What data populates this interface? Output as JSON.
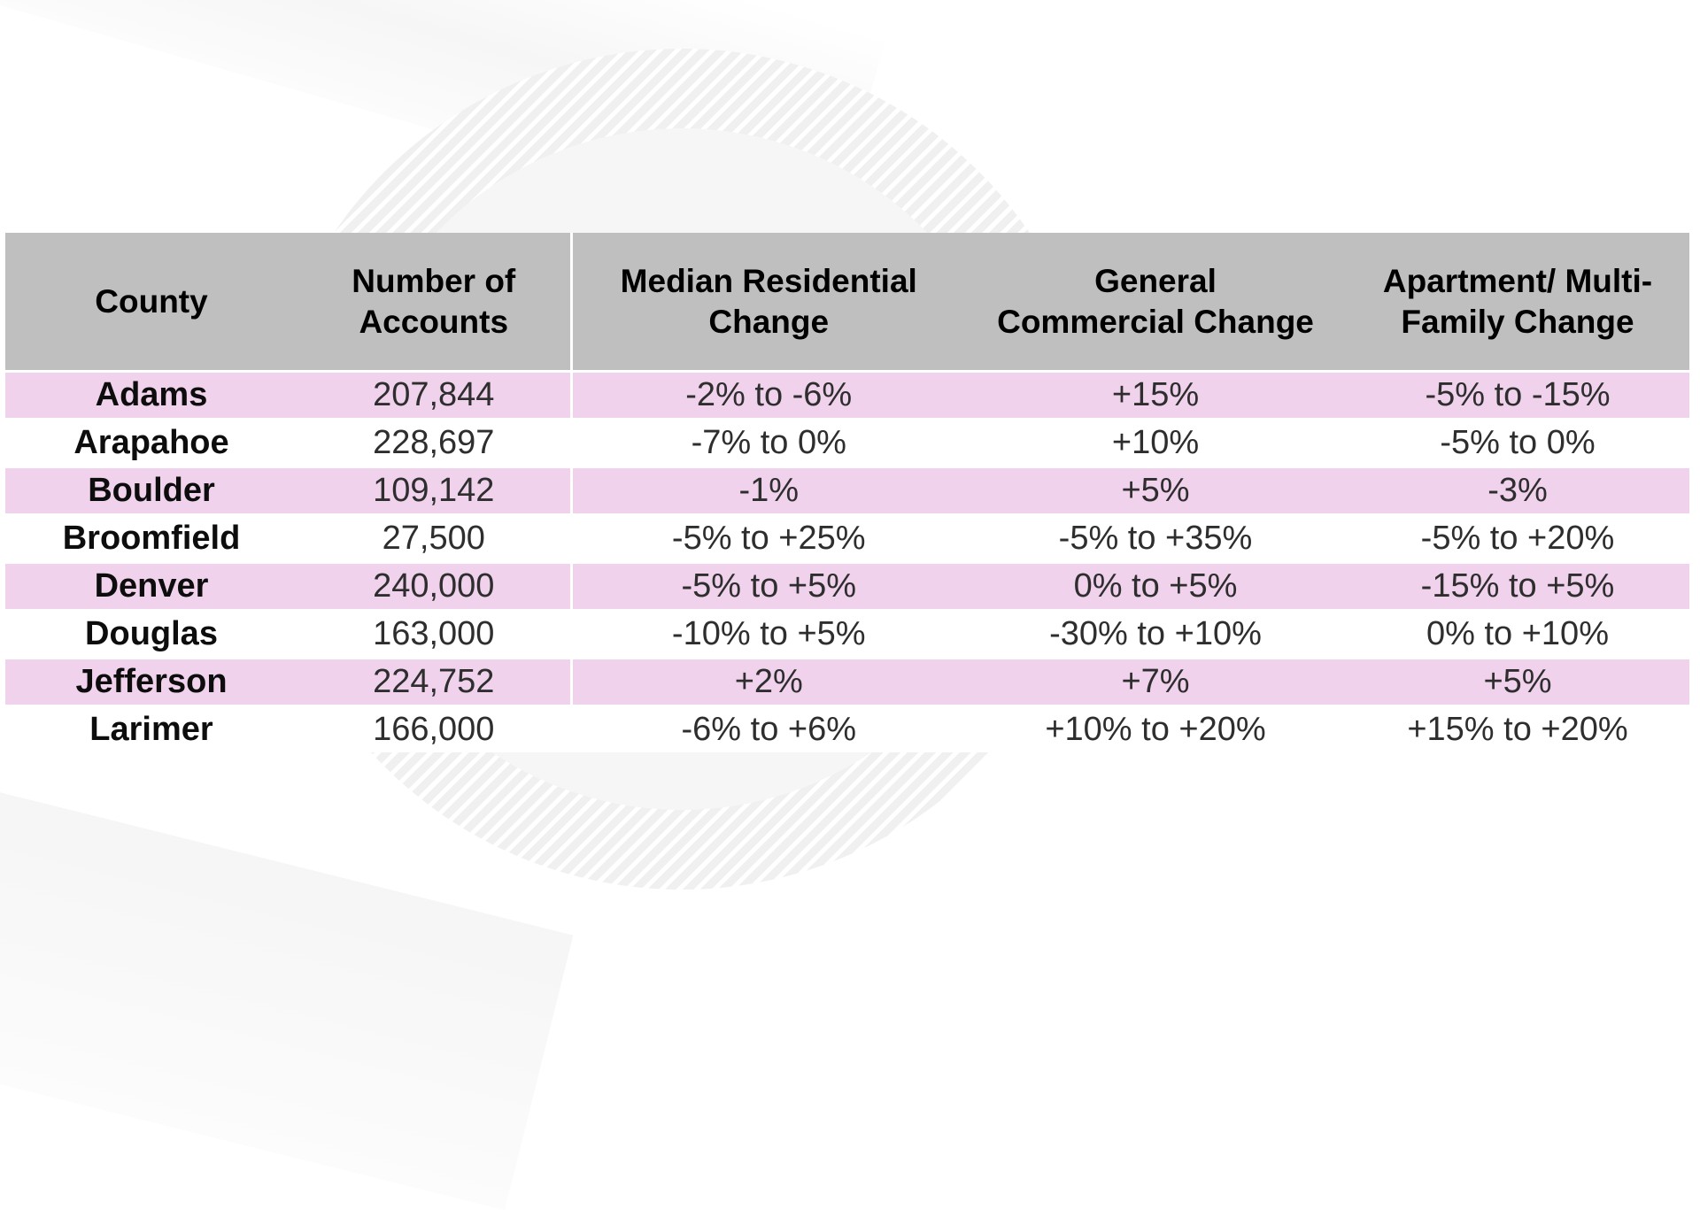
{
  "colors": {
    "header_bg": "#bfbfbf",
    "row_alt_bg": "#f1d2ed",
    "row_plain_bg": "#ffffff",
    "header_text": "#000000",
    "body_text": "#2e2e2e",
    "watermark_gray": "#f0f0f0"
  },
  "chart_data": {
    "type": "table",
    "title": "",
    "columns": [
      {
        "key": "county",
        "label": "County"
      },
      {
        "key": "accounts",
        "label": "Number of\nAccounts"
      },
      {
        "key": "residential",
        "label": "Median Residential\nChange"
      },
      {
        "key": "commercial",
        "label": "General\nCommercial Change"
      },
      {
        "key": "apartment",
        "label": "Apartment/ Multi-\nFamily Change"
      }
    ],
    "rows": [
      {
        "county": "Adams",
        "accounts": "207,844",
        "residential": "-2% to -6%",
        "commercial": "+15%",
        "apartment": "-5% to -15%"
      },
      {
        "county": "Arapahoe",
        "accounts": "228,697",
        "residential": "-7% to 0%",
        "commercial": "+10%",
        "apartment": "-5% to 0%"
      },
      {
        "county": "Boulder",
        "accounts": "109,142",
        "residential": "-1%",
        "commercial": "+5%",
        "apartment": "-3%"
      },
      {
        "county": "Broomfield",
        "accounts": "27,500",
        "residential": "-5% to +25%",
        "commercial": "-5% to +35%",
        "apartment": "-5% to +20%"
      },
      {
        "county": "Denver",
        "accounts": "240,000",
        "residential": "-5% to +5%",
        "commercial": "0% to +5%",
        "apartment": "-15% to +5%"
      },
      {
        "county": "Douglas",
        "accounts": "163,000",
        "residential": "-10% to +5%",
        "commercial": "-30% to +10%",
        "apartment": "0% to +10%"
      },
      {
        "county": "Jefferson",
        "accounts": "224,752",
        "residential": "+2%",
        "commercial": "+7%",
        "apartment": "+5%"
      },
      {
        "county": "Larimer",
        "accounts": "166,000",
        "residential": "-6% to +6%",
        "commercial": "+10% to +20%",
        "apartment": "+15% to +20%"
      }
    ]
  }
}
